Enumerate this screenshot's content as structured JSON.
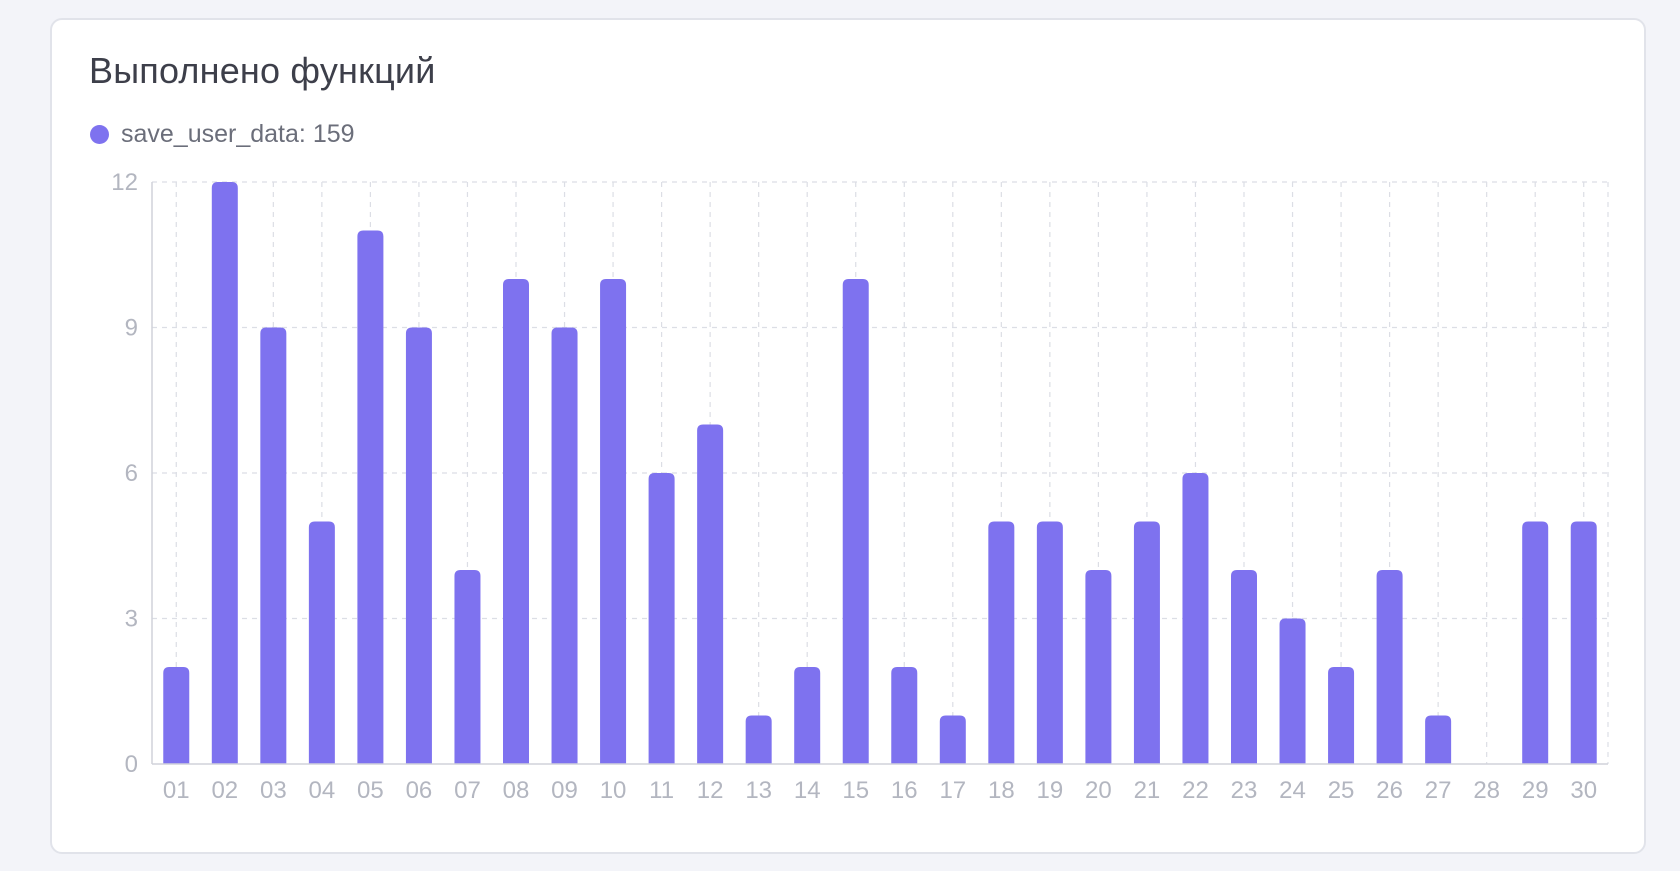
{
  "title": "Выполнено функций",
  "legend": {
    "series_name": "save_user_data:",
    "total": "159"
  },
  "colors": {
    "bar": "#7e72ef",
    "grid": "#dcdee5",
    "axis": "#d0d2da",
    "tick_text": "#b3b6c0"
  },
  "chart_data": {
    "type": "bar",
    "categories": [
      "01",
      "02",
      "03",
      "04",
      "05",
      "06",
      "07",
      "08",
      "09",
      "10",
      "11",
      "12",
      "13",
      "14",
      "15",
      "16",
      "17",
      "18",
      "19",
      "20",
      "21",
      "22",
      "23",
      "24",
      "25",
      "26",
      "27",
      "28",
      "29",
      "30"
    ],
    "series": [
      {
        "name": "save_user_data",
        "values": [
          2,
          12,
          9,
          5,
          11,
          9,
          4,
          10,
          9,
          10,
          6,
          7,
          1,
          2,
          10,
          2,
          1,
          5,
          5,
          4,
          5,
          6,
          4,
          3,
          2,
          4,
          1,
          0,
          5,
          5
        ]
      }
    ],
    "yticks": [
      "0",
      "3",
      "6",
      "9",
      "12"
    ],
    "ylim": [
      0,
      12
    ],
    "grid": true,
    "legend_position": "top-left"
  }
}
